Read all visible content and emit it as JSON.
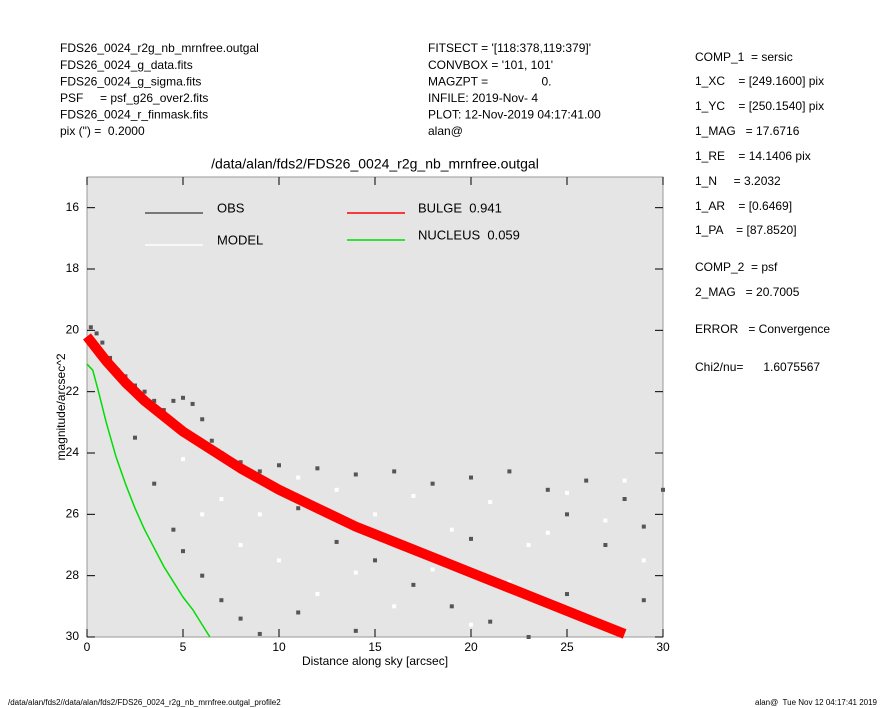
{
  "header": {
    "left": [
      "FDS26_0024_r2g_nb_mrnfree.outgal",
      "FDS26_0024_g_data.fits",
      "FDS26_0024_g_sigma.fits",
      "PSF     = psf_g26_over2.fits",
      "FDS26_0024_r_finmask.fits",
      "pix (\") =  0.2000"
    ],
    "middle": [
      "FITSECT = '[118:378,119:379]'",
      "CONVBOX = '101, 101'",
      "MAGZPT =                0.",
      "INFILE: 2019-Nov- 4",
      "PLOT: 12-Nov-2019 04:17:41.00",
      "alan@"
    ]
  },
  "params": [
    "COMP_1  = sersic",
    "1_XC    = [249.1600] pix",
    "1_YC    = [250.1540] pix",
    "1_MAG   = 17.6716",
    "1_RE    = 14.1406 pix",
    "1_N     = 3.2032",
    "1_AR    = [0.6469]",
    "1_PA    = [87.8520]",
    "COMP_2  = psf",
    "2_MAG   = 20.7005",
    "ERROR   = Convergence",
    "Chi2/nu=      1.6075567"
  ],
  "footer": {
    "left": "/data/alan/fds2//data/alan/fds2/FDS26_0024_r2g_nb_mrnfree.outgal_profile2",
    "right": "alan@  Tue Nov 12 04:17:41 2019"
  },
  "chart_data": {
    "type": "scatter",
    "title": "/data/alan/fds2/FDS26_0024_r2g_nb_mrnfree.outgal",
    "x_label": "Distance along sky [arcsec]",
    "y_label": "magnitude/arcsec^2",
    "xlim": [
      0,
      30
    ],
    "xticks": [
      0,
      5,
      10,
      15,
      20,
      25,
      30
    ],
    "ylim": [
      15,
      30
    ],
    "yticks": [
      16,
      18,
      20,
      22,
      24,
      26,
      28,
      30
    ],
    "y_inverted": true,
    "grid": false,
    "series": [
      {
        "name": "OBS",
        "color": "#555555",
        "style": "points",
        "x": [
          0.2,
          0.5,
          0.8,
          1.2,
          1.6,
          2.0,
          2.5,
          3.0,
          3.5,
          4.0,
          4.5,
          5.0,
          5.5,
          6.0,
          6.5,
          7,
          8,
          9,
          10,
          11,
          12,
          13,
          14,
          15,
          16,
          17,
          18,
          19,
          20,
          21,
          22,
          23,
          24,
          25,
          26,
          27,
          28,
          29,
          30,
          4.5,
          5,
          6,
          7,
          8,
          9,
          3.5,
          2.5,
          11,
          14,
          20,
          25,
          29
        ],
        "values": [
          19.9,
          20.1,
          20.4,
          20.9,
          21.3,
          21.5,
          21.8,
          22.0,
          22.3,
          22.6,
          22.3,
          22.2,
          22.4,
          22.9,
          23.6,
          24.0,
          24.3,
          24.6,
          24.4,
          25.8,
          24.5,
          26.9,
          24.7,
          27.5,
          24.6,
          28.3,
          25.0,
          29.0,
          24.8,
          29.5,
          24.6,
          30.0,
          25.2,
          28.6,
          24.9,
          27.0,
          25.5,
          26.4,
          25.2,
          26.5,
          27.2,
          28.0,
          28.8,
          29.4,
          29.9,
          25.0,
          23.5,
          29.2,
          29.8,
          26.8,
          26.0,
          28.8
        ]
      },
      {
        "name": "MODEL",
        "color": "#ffffff",
        "style": "points",
        "x": [
          5,
          7,
          9,
          11,
          13,
          15,
          17,
          19,
          21,
          23,
          25,
          27,
          29,
          10,
          12,
          16,
          18,
          22,
          26,
          28,
          8,
          6,
          14,
          20,
          24
        ],
        "values": [
          24.2,
          25.5,
          26.0,
          24.8,
          25.2,
          26.0,
          25.4,
          26.5,
          25.6,
          27.0,
          25.3,
          26.2,
          27.5,
          27.5,
          28.6,
          29.0,
          27.8,
          28.2,
          29.3,
          24.9,
          27.0,
          26.0,
          27.9,
          29.6,
          26.6
        ]
      },
      {
        "name": "BULGE  0.941",
        "color": "#ff0000",
        "style": "line",
        "x": [
          0,
          1,
          2,
          3,
          4,
          5,
          6,
          8,
          10,
          12,
          14,
          16,
          18,
          20,
          22,
          24,
          26,
          28
        ],
        "values": [
          20.2,
          21.0,
          21.7,
          22.3,
          22.8,
          23.3,
          23.7,
          24.5,
          25.2,
          25.8,
          26.4,
          26.9,
          27.4,
          27.9,
          28.4,
          28.9,
          29.4,
          29.9
        ]
      },
      {
        "name": "NUCLEUS  0.059",
        "color": "#00dd00",
        "style": "line",
        "x": [
          0,
          0.3,
          0.6,
          1,
          1.5,
          2,
          2.5,
          3,
          3.5,
          4,
          4.5,
          5,
          5.5,
          6,
          6.4
        ],
        "values": [
          21.1,
          21.3,
          22.0,
          23.0,
          24.1,
          25.0,
          25.8,
          26.5,
          27.1,
          27.7,
          28.2,
          28.7,
          29.1,
          29.6,
          30.0
        ]
      }
    ]
  }
}
